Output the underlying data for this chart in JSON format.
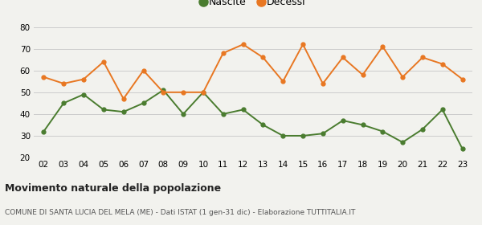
{
  "years": [
    "02",
    "03",
    "04",
    "05",
    "06",
    "07",
    "08",
    "09",
    "10",
    "11",
    "12",
    "13",
    "14",
    "15",
    "16",
    "17",
    "18",
    "19",
    "20",
    "21",
    "22",
    "23"
  ],
  "nascite": [
    32,
    45,
    49,
    42,
    41,
    45,
    51,
    40,
    50,
    40,
    42,
    35,
    30,
    30,
    31,
    37,
    35,
    32,
    27,
    33,
    42,
    24
  ],
  "decessi": [
    57,
    54,
    56,
    64,
    47,
    60,
    50,
    50,
    50,
    68,
    72,
    66,
    55,
    72,
    54,
    66,
    58,
    71,
    57,
    66,
    63,
    56
  ],
  "nascite_color": "#4a7c2f",
  "decessi_color": "#e87722",
  "bg_color": "#f2f2ee",
  "grid_color": "#cccccc",
  "ylim": [
    20,
    80
  ],
  "yticks": [
    20,
    30,
    40,
    50,
    60,
    70,
    80
  ],
  "title": "Movimento naturale della popolazione",
  "subtitle": "COMUNE DI SANTA LUCIA DEL MELA (ME) - Dati ISTAT (1 gen-31 dic) - Elaborazione TUTTITALIA.IT",
  "legend_nascite": "Nascite",
  "legend_decessi": "Decessi"
}
